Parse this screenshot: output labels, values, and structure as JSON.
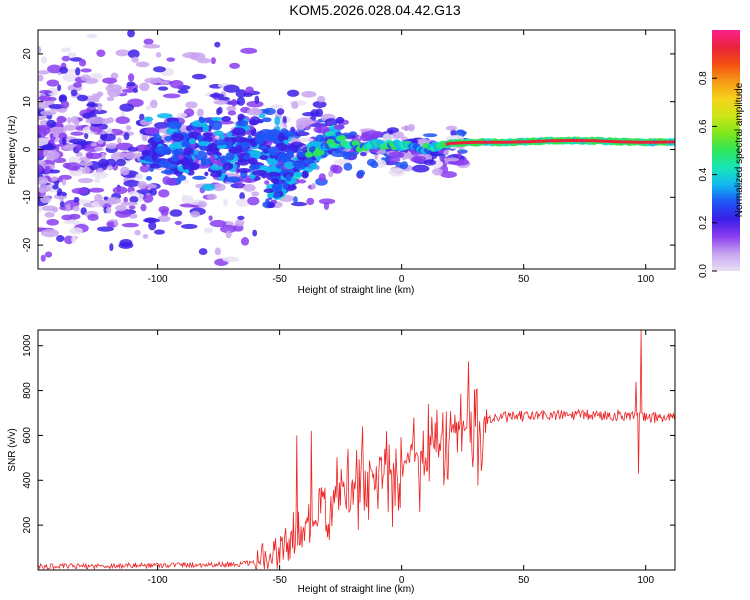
{
  "title": "KOM5.2026.028.04.42.G13",
  "colors": {
    "snr_line": "#ee2222",
    "ridge": "#e8233a",
    "colorbar": [
      "#e8e0f4",
      "#c9a6f0",
      "#8a3df0",
      "#3b1ee6",
      "#1f55f5",
      "#11b8f0",
      "#17e6b8",
      "#2ee65a",
      "#7fe619",
      "#cde61a",
      "#f5d21a",
      "#f59a14",
      "#f54f12",
      "#e8233a",
      "#ff1f8c"
    ]
  },
  "chart_data": [
    {
      "type": "heatmap",
      "title": "KOM5.2026.028.04.42.G13",
      "xlabel": "Height of straight line (km)",
      "ylabel": "Frequency (Hz)",
      "xlim": [
        -149,
        112
      ],
      "ylim": [
        -25,
        25
      ],
      "x_ticks": [
        -100,
        -50,
        0,
        50,
        100
      ],
      "y_ticks": [
        -20,
        -10,
        0,
        10,
        20
      ],
      "colorbar": {
        "label": "Normalized spectral amplitude",
        "range": [
          0.0,
          1.0
        ],
        "ticks": [
          0.0,
          0.2,
          0.4,
          0.6,
          0.8
        ]
      },
      "ridge_frequency_hz": {
        "x": [
          -35,
          -30,
          -25,
          -20,
          -15,
          -10,
          -5,
          0,
          5,
          10,
          15,
          20,
          30,
          40,
          50,
          60,
          70,
          80,
          90,
          100,
          112
        ],
        "y": [
          -0.5,
          1.0,
          2.0,
          0.8,
          0.5,
          1.3,
          0.8,
          0.9,
          0.7,
          0.2,
          0.7,
          1.3,
          1.5,
          1.5,
          1.6,
          1.8,
          1.9,
          1.8,
          1.6,
          1.5,
          1.6
        ]
      }
    },
    {
      "type": "line",
      "xlabel": "Height of straight line (km)",
      "ylabel": "SNR (v/v)",
      "xlim": [
        -149,
        112
      ],
      "ylim": [
        0,
        1070
      ],
      "x_ticks": [
        -100,
        -50,
        0,
        50,
        100
      ],
      "y_ticks": [
        200,
        400,
        600,
        800,
        1000
      ],
      "series": [
        {
          "name": "SNR",
          "envelope": {
            "x": [
              -149,
              -120,
              -100,
              -70,
              -60,
              -55,
              -50,
              -45,
              -40,
              -35,
              -30,
              -25,
              -20,
              -15,
              -10,
              -5,
              0,
              5,
              10,
              15,
              20,
              25,
              30,
              35,
              40,
              50,
              60,
              70,
              80,
              90,
              95,
              98,
              100,
              105,
              112
            ],
            "y": [
              15,
              18,
              22,
              25,
              30,
              45,
              90,
              130,
              180,
              230,
              280,
              320,
              360,
              390,
              420,
              450,
              480,
              510,
              540,
              570,
              600,
              630,
              650,
              670,
              680,
              685,
              690,
              690,
              690,
              690,
              690,
              680,
              680,
              680,
              680
            ]
          },
          "spikes": [
            {
              "x": -43,
              "y": 600
            },
            {
              "x": -37,
              "y": 620
            },
            {
              "x": -22,
              "y": 540
            },
            {
              "x": -16,
              "y": 640
            },
            {
              "x": -5,
              "y": 560
            },
            {
              "x": 5,
              "y": 680
            },
            {
              "x": 11,
              "y": 740
            },
            {
              "x": 96,
              "y": 840
            },
            {
              "x": 98,
              "y": 1070
            },
            {
              "x": 97,
              "y": 430
            }
          ]
        }
      ]
    }
  ]
}
